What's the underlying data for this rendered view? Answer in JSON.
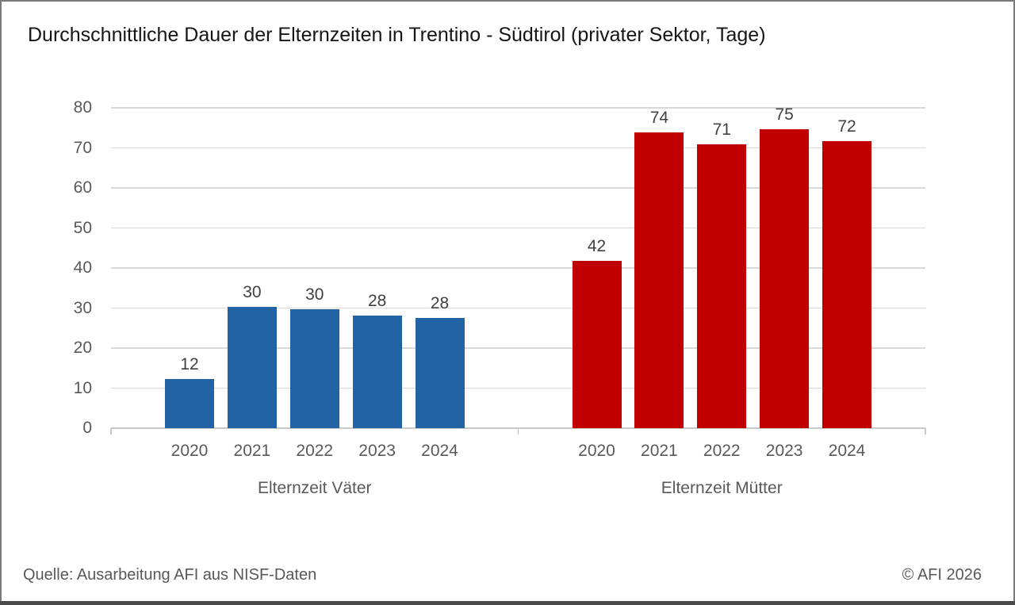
{
  "chart_data": {
    "type": "bar",
    "title": "Durchschnittliche Dauer der Elternzeiten in Trentino - Südtirol (privater Sektor, Tage)",
    "categories": [
      "2020",
      "2021",
      "2022",
      "2023",
      "2024"
    ],
    "series": [
      {
        "name": "Elternzeit Väter",
        "color": "#2163A5",
        "values": [
          12,
          30,
          30,
          28,
          28
        ],
        "precise_values": [
          12.3,
          30.3,
          29.8,
          28.2,
          27.5
        ]
      },
      {
        "name": "Elternzeit Mütter",
        "color": "#C00000",
        "values": [
          42,
          74,
          71,
          75,
          72
        ],
        "precise_values": [
          41.8,
          73.9,
          70.9,
          74.7,
          71.6
        ]
      }
    ],
    "ylabel": "",
    "xlabel": "",
    "ylim": [
      0,
      80
    ],
    "y_ticks": [
      0,
      10,
      20,
      30,
      40,
      50,
      60,
      70,
      80
    ],
    "grid": true,
    "legend_position": "none",
    "data_labels": true
  },
  "footer": {
    "source": "Quelle: Ausarbeitung AFI aus NISF-Daten",
    "copyright": "© AFI 2026"
  },
  "colors": {
    "gridline": "#D9D9D9",
    "axis": "#C9C9C9",
    "tick_label": "#595959",
    "data_label": "#404040",
    "border": "#7a7a7a",
    "bottom_bar": "#4A4A4A"
  }
}
